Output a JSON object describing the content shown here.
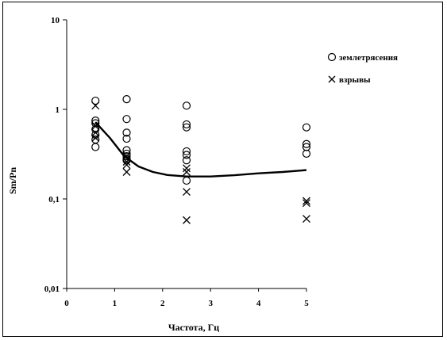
{
  "chart_data": {
    "type": "scatter",
    "xlabel": "Частота, Гц",
    "ylabel": "Sm/Pn",
    "xlim": [
      0,
      5
    ],
    "ylim": [
      0.01,
      10
    ],
    "y_scale": "log",
    "x_ticks": [
      "0",
      "1",
      "2",
      "3",
      "4",
      "5"
    ],
    "y_ticks": [
      "0,01",
      "0,1",
      "1",
      "10"
    ],
    "grid": false,
    "legend_position": "right",
    "series": [
      {
        "name": "землетрясения",
        "marker": "circle",
        "points": [
          [
            0.6,
            1.25
          ],
          [
            0.6,
            0.75
          ],
          [
            0.6,
            0.7
          ],
          [
            0.6,
            0.6
          ],
          [
            0.6,
            0.52
          ],
          [
            0.6,
            0.46
          ],
          [
            0.6,
            0.38
          ],
          [
            1.25,
            1.3
          ],
          [
            1.25,
            0.78
          ],
          [
            1.25,
            0.55
          ],
          [
            1.25,
            0.47
          ],
          [
            1.25,
            0.35
          ],
          [
            1.25,
            0.32
          ],
          [
            1.25,
            0.3
          ],
          [
            1.25,
            0.28
          ],
          [
            1.25,
            0.27
          ],
          [
            2.5,
            1.1
          ],
          [
            2.5,
            0.68
          ],
          [
            2.5,
            0.63
          ],
          [
            2.5,
            0.34
          ],
          [
            2.5,
            0.31
          ],
          [
            2.5,
            0.27
          ],
          [
            2.5,
            0.16
          ],
          [
            5,
            0.63
          ],
          [
            5,
            0.41
          ],
          [
            5,
            0.38
          ],
          [
            5,
            0.32
          ]
        ]
      },
      {
        "name": "взрывы",
        "marker": "x",
        "points": [
          [
            0.6,
            1.1
          ],
          [
            0.6,
            0.65
          ],
          [
            0.6,
            0.55
          ],
          [
            0.6,
            0.48
          ],
          [
            1.25,
            0.3
          ],
          [
            1.25,
            0.26
          ],
          [
            1.25,
            0.24
          ],
          [
            1.25,
            0.2
          ],
          [
            2.5,
            0.22
          ],
          [
            2.5,
            0.2
          ],
          [
            2.5,
            0.12
          ],
          [
            2.5,
            0.058
          ],
          [
            5,
            0.095
          ],
          [
            5,
            0.09
          ],
          [
            5,
            0.06
          ]
        ]
      },
      {
        "name": "",
        "type": "line",
        "points": [
          [
            0.6,
            0.72
          ],
          [
            0.9,
            0.48
          ],
          [
            1.2,
            0.3
          ],
          [
            1.5,
            0.23
          ],
          [
            1.8,
            0.2
          ],
          [
            2.1,
            0.185
          ],
          [
            2.5,
            0.178
          ],
          [
            3.0,
            0.178
          ],
          [
            3.5,
            0.184
          ],
          [
            4.0,
            0.193
          ],
          [
            4.5,
            0.2
          ],
          [
            5.0,
            0.21
          ]
        ]
      }
    ]
  }
}
